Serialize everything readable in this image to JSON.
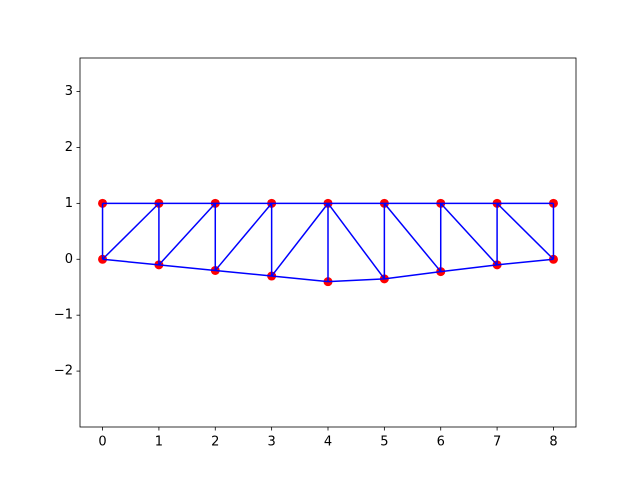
{
  "chart_data": {
    "type": "line",
    "xlim": [
      -0.4,
      8.4
    ],
    "ylim": [
      -3.0,
      3.6
    ],
    "xticks": [
      0,
      1,
      2,
      3,
      4,
      5,
      6,
      7,
      8
    ],
    "yticks": [
      {
        "value": -2,
        "label": "−2"
      },
      {
        "value": -1,
        "label": "−1"
      },
      0,
      1,
      2,
      3
    ],
    "grid": false,
    "points": {
      "color": "#ff0000",
      "x": [
        0,
        1,
        2,
        3,
        4,
        5,
        6,
        7,
        8,
        0,
        1,
        2,
        3,
        4,
        5,
        6,
        7,
        8
      ],
      "y": [
        0,
        -0.1,
        -0.2,
        -0.3,
        -0.4,
        -0.35,
        -0.22,
        -0.1,
        0,
        1,
        1,
        1,
        1,
        1,
        1,
        1,
        1,
        1
      ]
    },
    "line_color": "#0000ff",
    "series": [
      {
        "x": [
          0,
          1,
          2,
          3,
          4,
          5,
          6,
          7,
          8
        ],
        "y": [
          1,
          1,
          1,
          1,
          1,
          1,
          1,
          1,
          1
        ]
      },
      {
        "x": [
          0,
          1,
          2,
          3,
          4,
          5,
          6,
          7,
          8
        ],
        "y": [
          0,
          -0.1,
          -0.2,
          -0.3,
          -0.4,
          -0.35,
          -0.22,
          -0.1,
          0
        ]
      },
      {
        "x": [
          0,
          0
        ],
        "y": [
          0,
          1
        ]
      },
      {
        "x": [
          1,
          1
        ],
        "y": [
          -0.1,
          1
        ]
      },
      {
        "x": [
          2,
          2
        ],
        "y": [
          -0.2,
          1
        ]
      },
      {
        "x": [
          3,
          3
        ],
        "y": [
          -0.3,
          1
        ]
      },
      {
        "x": [
          4,
          4
        ],
        "y": [
          -0.4,
          1
        ]
      },
      {
        "x": [
          5,
          5
        ],
        "y": [
          -0.35,
          1
        ]
      },
      {
        "x": [
          6,
          6
        ],
        "y": [
          -0.22,
          1
        ]
      },
      {
        "x": [
          7,
          7
        ],
        "y": [
          -0.1,
          1
        ]
      },
      {
        "x": [
          8,
          8
        ],
        "y": [
          0,
          1
        ]
      },
      {
        "x": [
          0,
          1
        ],
        "y": [
          0,
          1
        ]
      },
      {
        "x": [
          1,
          2
        ],
        "y": [
          -0.1,
          1
        ]
      },
      {
        "x": [
          2,
          3
        ],
        "y": [
          -0.2,
          1
        ]
      },
      {
        "x": [
          3,
          4
        ],
        "y": [
          -0.3,
          1
        ]
      },
      {
        "x": [
          4,
          5
        ],
        "y": [
          1,
          -0.35
        ]
      },
      {
        "x": [
          5,
          6
        ],
        "y": [
          1,
          -0.22
        ]
      },
      {
        "x": [
          6,
          7
        ],
        "y": [
          1,
          -0.1
        ]
      },
      {
        "x": [
          7,
          8
        ],
        "y": [
          1,
          0
        ]
      }
    ]
  }
}
